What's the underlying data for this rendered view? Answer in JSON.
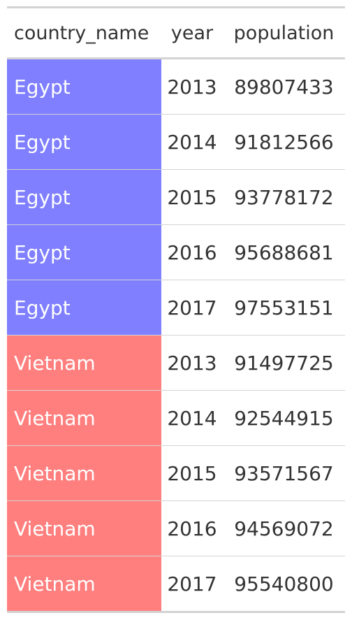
{
  "table": {
    "headers": [
      "country_name",
      "year",
      "population"
    ],
    "rows": [
      {
        "country_name": "Egypt",
        "year": "2013",
        "population": "89807433"
      },
      {
        "country_name": "Egypt",
        "year": "2014",
        "population": "91812566"
      },
      {
        "country_name": "Egypt",
        "year": "2015",
        "population": "93778172"
      },
      {
        "country_name": "Egypt",
        "year": "2016",
        "population": "95688681"
      },
      {
        "country_name": "Egypt",
        "year": "2017",
        "population": "97553151"
      },
      {
        "country_name": "Vietnam",
        "year": "2013",
        "population": "91497725"
      },
      {
        "country_name": "Vietnam",
        "year": "2014",
        "population": "92544915"
      },
      {
        "country_name": "Vietnam",
        "year": "2015",
        "population": "93571567"
      },
      {
        "country_name": "Vietnam",
        "year": "2016",
        "population": "94569072"
      },
      {
        "country_name": "Vietnam",
        "year": "2017",
        "population": "95540800"
      }
    ]
  },
  "colors": {
    "Egypt": "#7f7fff",
    "Vietnam": "#ff7f7f"
  }
}
